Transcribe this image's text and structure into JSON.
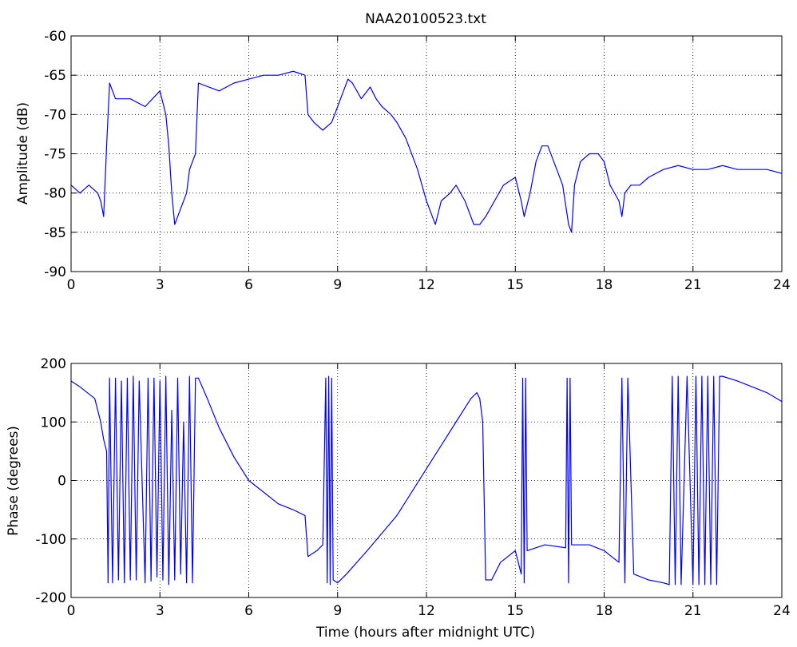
{
  "window": {
    "background": "#ffffff"
  },
  "chart_data": [
    {
      "type": "line",
      "title": "NAA20100523.txt",
      "xlabel": "",
      "ylabel": "Amplitude (dB)",
      "xlim": [
        0,
        24
      ],
      "ylim": [
        -90,
        -60
      ],
      "xticks": [
        0,
        3,
        6,
        9,
        12,
        15,
        18,
        21,
        24
      ],
      "yticks": [
        -90,
        -85,
        -80,
        -75,
        -70,
        -65,
        -60
      ],
      "grid": true,
      "line_color": "#0000ff",
      "series": [
        {
          "x": [
            0,
            0.3,
            0.6,
            0.9,
            1.0,
            1.1,
            1.2,
            1.3,
            1.5,
            2.0,
            2.5,
            3.0,
            3.2,
            3.3,
            3.4,
            3.5,
            3.7,
            3.9,
            4.0,
            4.2,
            4.3,
            5.0,
            5.5,
            6.0,
            6.5,
            7.0,
            7.5,
            7.9,
            8.0,
            8.2,
            8.5,
            8.8,
            9.0,
            9.2,
            9.35,
            9.5,
            9.8,
            10.0,
            10.1,
            10.3,
            10.5,
            10.8,
            11.0,
            11.3,
            11.7,
            12.0,
            12.2,
            12.3,
            12.5,
            12.8,
            13.0,
            13.3,
            13.6,
            13.8,
            14.0,
            14.3,
            14.6,
            15.0,
            15.2,
            15.3,
            15.5,
            15.7,
            15.9,
            16.1,
            16.3,
            16.6,
            16.8,
            16.9,
            17.0,
            17.2,
            17.5,
            17.8,
            18.0,
            18.2,
            18.5,
            18.6,
            18.7,
            18.9,
            19.2,
            19.5,
            20.0,
            20.5,
            21.0,
            21.5,
            22.0,
            22.5,
            23.0,
            23.5,
            24.0
          ],
          "y": [
            -79,
            -80,
            -79,
            -80,
            -81,
            -83,
            -74,
            -66,
            -68,
            -68,
            -69,
            -67,
            -70,
            -74,
            -80,
            -84,
            -82,
            -80,
            -77,
            -75,
            -66,
            -67,
            -66,
            -65.5,
            -65,
            -65,
            -64.5,
            -65,
            -70,
            -71,
            -72,
            -71,
            -69,
            -67,
            -65.5,
            -66,
            -68,
            -67,
            -66.5,
            -68,
            -69,
            -70,
            -71,
            -73,
            -77,
            -81,
            -83,
            -84,
            -81,
            -80,
            -79,
            -81,
            -84,
            -84,
            -83,
            -81,
            -79,
            -78,
            -81,
            -83,
            -80,
            -76,
            -74,
            -74,
            -76,
            -79,
            -84,
            -85,
            -79,
            -76,
            -75,
            -75,
            -76,
            -79,
            -81,
            -83,
            -80,
            -79,
            -79,
            -78,
            -77,
            -76.5,
            -77,
            -77,
            -76.5,
            -77,
            -77,
            -77,
            -77.5
          ]
        }
      ]
    },
    {
      "type": "line",
      "title": "",
      "xlabel": "Time (hours after midnight UTC)",
      "ylabel": "Phase (degrees)",
      "xlim": [
        0,
        24
      ],
      "ylim": [
        -200,
        200
      ],
      "xticks": [
        0,
        3,
        6,
        9,
        12,
        15,
        18,
        21,
        24
      ],
      "yticks": [
        -200,
        -100,
        0,
        100,
        200
      ],
      "grid": true,
      "line_color": "#0000ff",
      "series": [
        {
          "x": [
            0,
            0.3,
            0.8,
            1.0,
            1.1,
            1.2,
            1.25,
            1.3,
            1.4,
            1.5,
            1.6,
            1.7,
            1.8,
            1.9,
            2.0,
            2.1,
            2.2,
            2.3,
            2.5,
            2.6,
            2.7,
            2.8,
            2.9,
            3.0,
            3.1,
            3.2,
            3.3,
            3.4,
            3.5,
            3.6,
            3.7,
            3.8,
            3.9,
            4.0,
            4.1,
            4.2,
            4.3,
            4.6,
            5.0,
            5.5,
            6.0,
            6.5,
            7.0,
            7.5,
            7.9,
            8.0,
            8.3,
            8.5,
            8.6,
            8.65,
            8.7,
            8.75,
            8.8,
            8.85,
            9.0,
            9.3,
            10.0,
            11.0,
            11.5,
            12.0,
            12.5,
            13.0,
            13.5,
            13.7,
            13.8,
            13.9,
            14.0,
            14.2,
            14.5,
            15.0,
            15.2,
            15.25,
            15.3,
            15.35,
            15.4,
            16.0,
            16.7,
            16.75,
            16.8,
            16.85,
            16.9,
            17.5,
            18.0,
            18.5,
            18.6,
            18.7,
            18.8,
            19.0,
            19.5,
            20.0,
            20.2,
            20.3,
            20.4,
            20.5,
            20.6,
            20.8,
            21.0,
            21.1,
            21.2,
            21.3,
            21.4,
            21.5,
            21.6,
            21.7,
            21.8,
            21.9,
            22.0,
            22.5,
            23.0,
            23.5,
            24.0
          ],
          "y": [
            170,
            160,
            140,
            100,
            70,
            50,
            -175,
            175,
            -175,
            175,
            -170,
            170,
            -175,
            175,
            -170,
            178,
            -170,
            170,
            -175,
            175,
            -172,
            175,
            -165,
            170,
            -170,
            178,
            -178,
            120,
            -170,
            175,
            -160,
            100,
            -175,
            178,
            -175,
            175,
            175,
            140,
            90,
            40,
            0,
            -20,
            -40,
            -50,
            -60,
            -130,
            -120,
            -110,
            175,
            -175,
            178,
            -178,
            175,
            -170,
            -175,
            -160,
            -120,
            -60,
            -20,
            20,
            60,
            100,
            140,
            150,
            140,
            100,
            -170,
            -170,
            -140,
            -120,
            -160,
            175,
            -175,
            175,
            -120,
            -110,
            -115,
            175,
            -175,
            175,
            -110,
            -110,
            -120,
            -140,
            175,
            -175,
            175,
            -160,
            -170,
            -175,
            -178,
            178,
            -178,
            178,
            -178,
            178,
            -178,
            178,
            -178,
            178,
            -178,
            178,
            -178,
            178,
            -178,
            178,
            178,
            170,
            160,
            150,
            135
          ]
        }
      ]
    }
  ]
}
